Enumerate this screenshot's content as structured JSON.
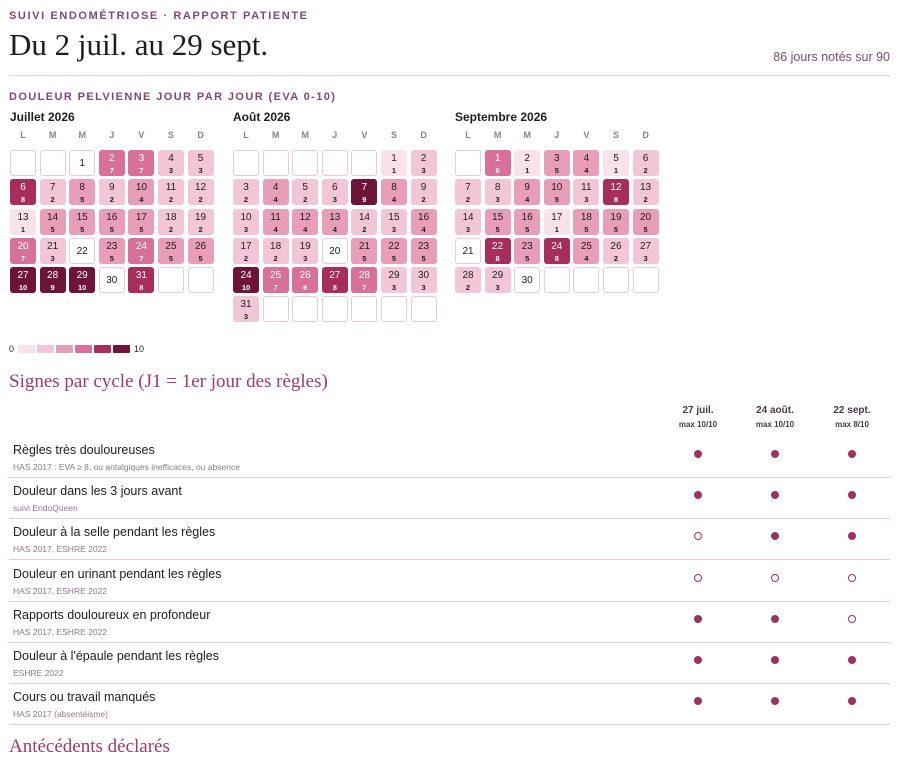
{
  "header": {
    "eyebrow": "SUIVI ENDOMÉTRIOSE · RAPPORT PATIENTE",
    "title": "Du 2 juil. au 29 sept.",
    "days_noted": "86 jours notés sur 90"
  },
  "pain_section": {
    "title": "DOULEUR PELVIENNE JOUR PAR JOUR (EVA 0-10)",
    "weekday_labels": [
      "L",
      "M",
      "M",
      "J",
      "V",
      "S",
      "D"
    ],
    "scale_min": "0",
    "scale_max": "10",
    "months": [
      {
        "name": "Juillet 2026",
        "offset": 2,
        "days": [
          {
            "d": "1",
            "s": null
          },
          {
            "d": "2",
            "s": "7"
          },
          {
            "d": "3",
            "s": "7"
          },
          {
            "d": "4",
            "s": "3"
          },
          {
            "d": "5",
            "s": "3"
          },
          {
            "d": "6",
            "s": "8"
          },
          {
            "d": "7",
            "s": "2"
          },
          {
            "d": "8",
            "s": "5"
          },
          {
            "d": "9",
            "s": "2"
          },
          {
            "d": "10",
            "s": "4"
          },
          {
            "d": "11",
            "s": "2"
          },
          {
            "d": "12",
            "s": "2"
          },
          {
            "d": "13",
            "s": "1"
          },
          {
            "d": "14",
            "s": "5"
          },
          {
            "d": "15",
            "s": "5"
          },
          {
            "d": "16",
            "s": "5"
          },
          {
            "d": "17",
            "s": "5"
          },
          {
            "d": "18",
            "s": "2"
          },
          {
            "d": "19",
            "s": "2"
          },
          {
            "d": "20",
            "s": "7"
          },
          {
            "d": "21",
            "s": "3"
          },
          {
            "d": "22",
            "s": null
          },
          {
            "d": "23",
            "s": "5"
          },
          {
            "d": "24",
            "s": "7"
          },
          {
            "d": "25",
            "s": "5"
          },
          {
            "d": "26",
            "s": "5"
          },
          {
            "d": "27",
            "s": "10"
          },
          {
            "d": "28",
            "s": "9"
          },
          {
            "d": "29",
            "s": "10"
          },
          {
            "d": "30",
            "s": null
          },
          {
            "d": "31",
            "s": "8"
          }
        ]
      },
      {
        "name": "Août 2026",
        "offset": 5,
        "days": [
          {
            "d": "1",
            "s": "1"
          },
          {
            "d": "2",
            "s": "3"
          },
          {
            "d": "3",
            "s": "2"
          },
          {
            "d": "4",
            "s": "4"
          },
          {
            "d": "5",
            "s": "2"
          },
          {
            "d": "6",
            "s": "3"
          },
          {
            "d": "7",
            "s": "9"
          },
          {
            "d": "8",
            "s": "4"
          },
          {
            "d": "9",
            "s": "2"
          },
          {
            "d": "10",
            "s": "3"
          },
          {
            "d": "11",
            "s": "4"
          },
          {
            "d": "12",
            "s": "4"
          },
          {
            "d": "13",
            "s": "4"
          },
          {
            "d": "14",
            "s": "2"
          },
          {
            "d": "15",
            "s": "3"
          },
          {
            "d": "16",
            "s": "4"
          },
          {
            "d": "17",
            "s": "2"
          },
          {
            "d": "18",
            "s": "2"
          },
          {
            "d": "19",
            "s": "3"
          },
          {
            "d": "20",
            "s": null
          },
          {
            "d": "21",
            "s": "5"
          },
          {
            "d": "22",
            "s": "5"
          },
          {
            "d": "23",
            "s": "5"
          },
          {
            "d": "24",
            "s": "10"
          },
          {
            "d": "25",
            "s": "7"
          },
          {
            "d": "26",
            "s": "6"
          },
          {
            "d": "27",
            "s": "8"
          },
          {
            "d": "28",
            "s": "7"
          },
          {
            "d": "29",
            "s": "3"
          },
          {
            "d": "30",
            "s": "3"
          },
          {
            "d": "31",
            "s": "3"
          }
        ]
      },
      {
        "name": "Septembre 2026",
        "offset": 1,
        "days": [
          {
            "d": "1",
            "s": "6"
          },
          {
            "d": "2",
            "s": "1"
          },
          {
            "d": "3",
            "s": "5"
          },
          {
            "d": "4",
            "s": "4"
          },
          {
            "d": "5",
            "s": "1"
          },
          {
            "d": "6",
            "s": "2"
          },
          {
            "d": "7",
            "s": "2"
          },
          {
            "d": "8",
            "s": "3"
          },
          {
            "d": "9",
            "s": "4"
          },
          {
            "d": "10",
            "s": "5"
          },
          {
            "d": "11",
            "s": "3"
          },
          {
            "d": "12",
            "s": "8"
          },
          {
            "d": "13",
            "s": "2"
          },
          {
            "d": "14",
            "s": "3"
          },
          {
            "d": "15",
            "s": "5"
          },
          {
            "d": "16",
            "s": "5"
          },
          {
            "d": "17",
            "s": "1"
          },
          {
            "d": "18",
            "s": "5"
          },
          {
            "d": "19",
            "s": "5"
          },
          {
            "d": "20",
            "s": "5"
          },
          {
            "d": "21",
            "s": null
          },
          {
            "d": "22",
            "s": "8"
          },
          {
            "d": "23",
            "s": "5"
          },
          {
            "d": "24",
            "s": "8"
          },
          {
            "d": "25",
            "s": "4"
          },
          {
            "d": "26",
            "s": "2"
          },
          {
            "d": "27",
            "s": "3"
          },
          {
            "d": "28",
            "s": "2"
          },
          {
            "d": "29",
            "s": "3"
          },
          {
            "d": "30",
            "s": null
          }
        ]
      }
    ]
  },
  "signs": {
    "title": "Signes par cycle (J1 = 1er jour des règles)",
    "cycles": [
      {
        "date": "27 juil.",
        "max": "max 10/10"
      },
      {
        "date": "24 août.",
        "max": "max 10/10"
      },
      {
        "date": "22 sept.",
        "max": "max 8/10"
      }
    ],
    "rows": [
      {
        "label": "Règles très douloureuses",
        "source": "HAS 2017 : EVA ≥ 8, ou antalgiques inefficaces, ou absence",
        "marks": [
          true,
          true,
          true
        ]
      },
      {
        "label": "Douleur dans les 3 jours avant",
        "source": "suivi EndoQueen",
        "marks": [
          true,
          true,
          true
        ]
      },
      {
        "label": "Douleur à la selle pendant les règles",
        "source": "HAS 2017, ESHRE 2022",
        "marks": [
          false,
          true,
          true
        ]
      },
      {
        "label": "Douleur en urinant pendant les règles",
        "source": "HAS 2017, ESHRE 2022",
        "marks": [
          false,
          false,
          false
        ]
      },
      {
        "label": "Rapports douloureux en profondeur",
        "source": "HAS 2017, ESHRE 2022",
        "marks": [
          true,
          true,
          false
        ]
      },
      {
        "label": "Douleur à l'épaule pendant les règles",
        "source": "ESHRE 2022",
        "marks": [
          true,
          true,
          true
        ]
      },
      {
        "label": "Cours ou travail manqués",
        "source": "HAS 2017 (absentéisme)",
        "marks": [
          true,
          true,
          true
        ]
      }
    ]
  },
  "next_section_title": "Antécédents déclarés",
  "colors": {
    "accent": "#7d4a73",
    "heading": "#a03a6a",
    "scale": [
      "#f8e3ea",
      "#f2c6d6",
      "#e89db9",
      "#d8709a",
      "#a62d5c",
      "#6e1438"
    ]
  }
}
